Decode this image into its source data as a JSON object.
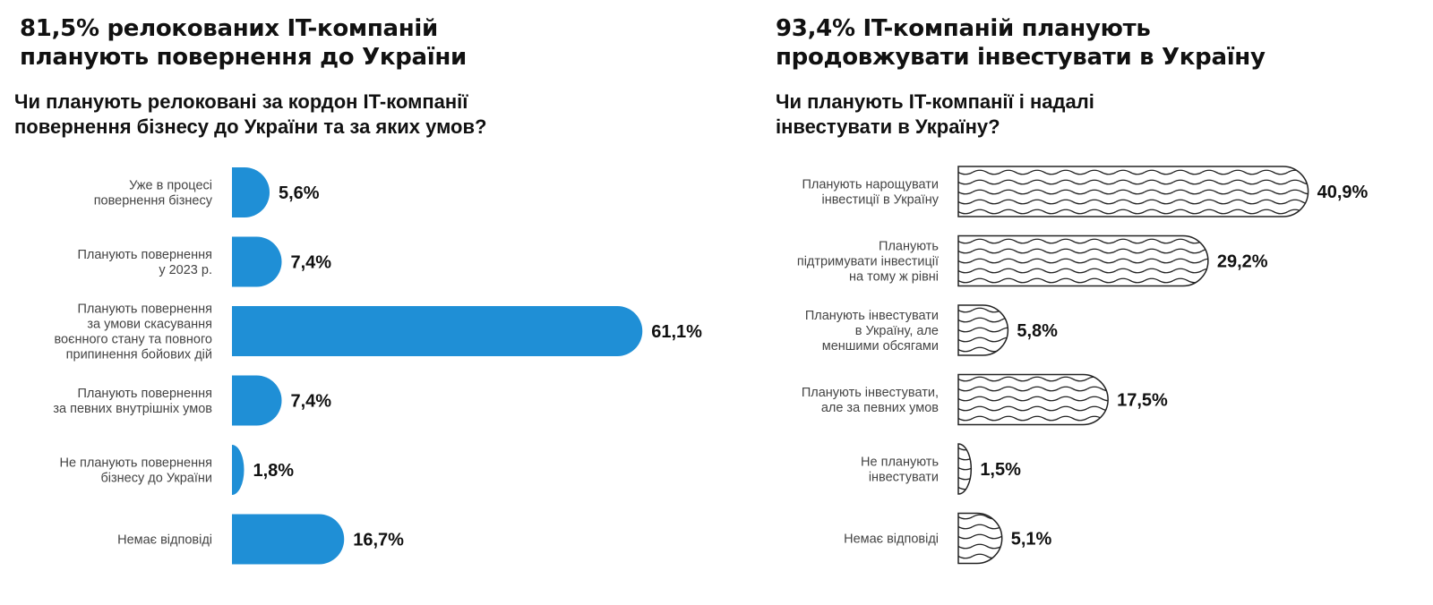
{
  "colors": {
    "left_bar": "#1f8fd6",
    "right_bar_stroke": "#222222",
    "text": "#111111",
    "label": "#444444"
  },
  "chart_data": [
    {
      "type": "bar",
      "orientation": "horizontal",
      "title_lines": [
        "81,5% релокованих IT-компаній",
        "планують повернення до України"
      ],
      "subtitle_lines": [
        "Чи планують релоковані за кордон IT-компанії",
        "повернення бізнесу до України та за яких умов?"
      ],
      "categories": [
        [
          "Уже в процесі",
          "повернення бізнесу"
        ],
        [
          "Планують повернення",
          "у 2023 р."
        ],
        [
          "Планують повернення",
          "за умови скасування",
          "воєнного стану та повного",
          "припинення бойових дій"
        ],
        [
          "Планують повернення",
          "за певних внутрішніх умов"
        ],
        [
          "Не планують повернення",
          "бізнесу до України"
        ],
        [
          "Немає відповіді"
        ]
      ],
      "values": [
        5.6,
        7.4,
        61.1,
        7.4,
        1.8,
        16.7
      ],
      "value_labels": [
        "5,6%",
        "7,4%",
        "61,1%",
        "7,4%",
        "1,8%",
        "16,7%"
      ],
      "unit": "%",
      "fill": "solid blue"
    },
    {
      "type": "bar",
      "orientation": "horizontal",
      "title_lines": [
        "93,4% IT-компаній планують",
        "продовжувати інвестувати в Україну"
      ],
      "subtitle_lines": [
        "Чи планують IT-компанії і надалі",
        "інвестувати в Україну?"
      ],
      "categories": [
        [
          "Планують нарощувати",
          "інвестиції в Україну"
        ],
        [
          "Планують",
          "підтримувати інвестиції",
          "на тому ж рівні"
        ],
        [
          "Планують інвестувати",
          "в Україну, але",
          "меншими обсягами"
        ],
        [
          "Планують інвестувати,",
          "але за певних умов"
        ],
        [
          "Не планують",
          "інвестувати"
        ],
        [
          "Немає відповіді"
        ]
      ],
      "values": [
        40.9,
        29.2,
        5.8,
        17.5,
        1.5,
        5.1
      ],
      "value_labels": [
        "40,9%",
        "29,2%",
        "5,8%",
        "17,5%",
        "1,5%",
        "5,1%"
      ],
      "unit": "%",
      "fill": "wavy line pattern"
    }
  ]
}
